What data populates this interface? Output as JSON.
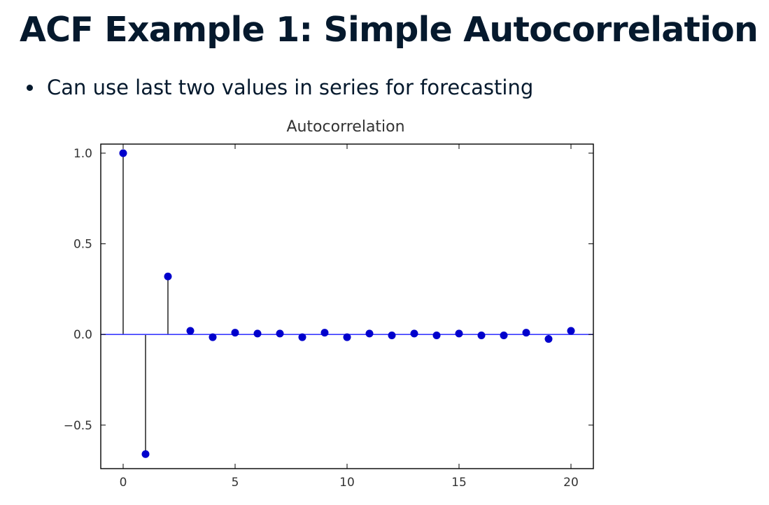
{
  "slide": {
    "title": "ACF Example 1: Simple Autocorrelation",
    "bullets": [
      "Can use last two values in series for forecasting"
    ]
  },
  "chart_data": {
    "type": "scatter",
    "style": "stem",
    "title": "Autocorrelation",
    "xlabel": "",
    "ylabel": "",
    "xlim": [
      -1,
      21
    ],
    "ylim": [
      -0.74,
      1.05
    ],
    "xticks": [
      "0",
      "5",
      "10",
      "15",
      "20"
    ],
    "yticks": [
      "1.0",
      "0.5",
      "0.0",
      "−0.5"
    ],
    "x": [
      0,
      1,
      2,
      3,
      4,
      5,
      6,
      7,
      8,
      9,
      10,
      11,
      12,
      13,
      14,
      15,
      16,
      17,
      18,
      19,
      20
    ],
    "y": [
      1.0,
      -0.66,
      0.32,
      0.02,
      -0.015,
      0.01,
      0.005,
      0.005,
      -0.015,
      0.01,
      -0.015,
      0.005,
      -0.005,
      0.005,
      -0.005,
      0.005,
      -0.005,
      -0.005,
      0.01,
      -0.025,
      0.02
    ],
    "grid": false,
    "colors": {
      "marker": "#0000cc",
      "stem": "#000000",
      "baseline": "#3a3aff"
    }
  }
}
